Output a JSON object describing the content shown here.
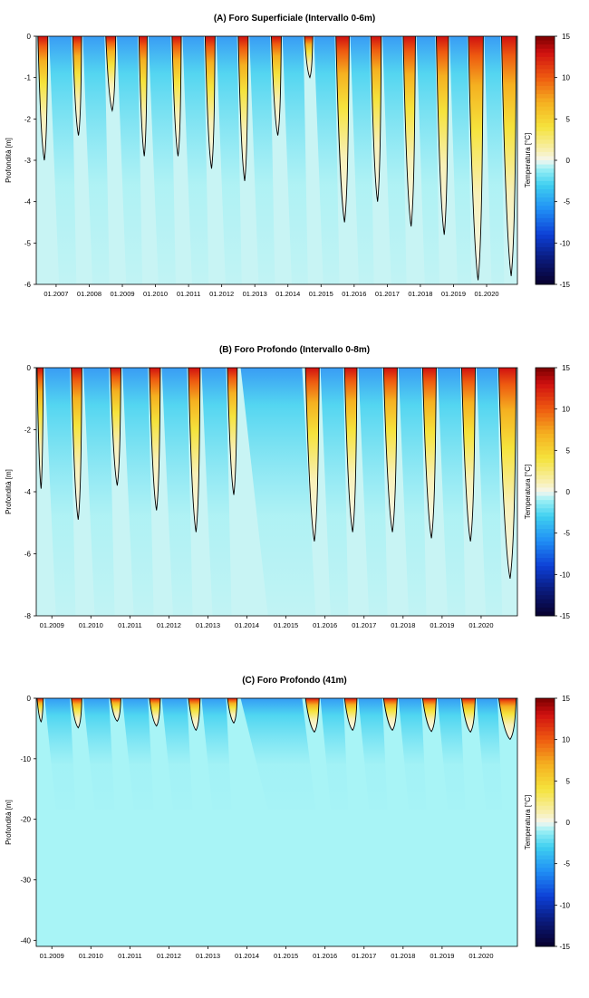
{
  "colorbar": {
    "label": "Temperatura [°C]",
    "ticks": [
      15,
      10,
      5,
      0,
      -5,
      -10,
      -15
    ],
    "range": [
      -15,
      15
    ],
    "colors": {
      "neg15": "#08002e",
      "neg12": "#0a1a7a",
      "neg9": "#0d3fd6",
      "neg6": "#1f8df5",
      "neg3": "#3fd0f0",
      "neg1": "#9ef0f5",
      "zero": "#f5f7f0",
      "pos1": "#f8f0b8",
      "pos4": "#f5e33c",
      "pos7": "#f5b020",
      "pos10": "#ee5a10",
      "pos13": "#d01010",
      "pos15": "#7a0000"
    }
  },
  "chart_data": [
    {
      "type": "heatmap",
      "title": "(A) Foro Superficiale (Intervallo 0-6m)",
      "ylabel": "Profondità [m]",
      "ylim": [
        -6,
        0
      ],
      "yticks": [
        0,
        -1,
        -2,
        -3,
        -4,
        -5,
        -6
      ],
      "xlim": [
        2006.4,
        2020.93
      ],
      "xticks": [
        2007,
        2008,
        2009,
        2010,
        2011,
        2012,
        2013,
        2014,
        2015,
        2016,
        2017,
        2018,
        2019,
        2020
      ],
      "xtick_labels": [
        "01.2007",
        "01.2008",
        "01.2009",
        "01.2010",
        "01.2011",
        "01.2012",
        "01.2013",
        "01.2014",
        "01.2015",
        "01.2016",
        "01.2017",
        "01.2018",
        "01.2019",
        "01.2020"
      ],
      "summers": [
        {
          "start": 2006.45,
          "end": 2006.75,
          "max_thaw_depth": 3.0
        },
        {
          "start": 2007.5,
          "end": 2007.77,
          "max_thaw_depth": 2.4
        },
        {
          "start": 2008.5,
          "end": 2008.8,
          "max_thaw_depth": 1.8
        },
        {
          "start": 2009.5,
          "end": 2009.75,
          "max_thaw_depth": 2.9
        },
        {
          "start": 2010.5,
          "end": 2010.78,
          "max_thaw_depth": 2.9
        },
        {
          "start": 2011.5,
          "end": 2011.8,
          "max_thaw_depth": 3.2
        },
        {
          "start": 2012.5,
          "end": 2012.8,
          "max_thaw_depth": 3.5
        },
        {
          "start": 2013.5,
          "end": 2013.8,
          "max_thaw_depth": 2.4
        },
        {
          "start": 2014.5,
          "end": 2014.75,
          "max_thaw_depth": 1.0
        },
        {
          "start": 2015.45,
          "end": 2015.85,
          "max_thaw_depth": 4.5
        },
        {
          "start": 2016.5,
          "end": 2016.82,
          "max_thaw_depth": 4.0
        },
        {
          "start": 2017.48,
          "end": 2017.85,
          "max_thaw_depth": 4.6
        },
        {
          "start": 2018.48,
          "end": 2018.85,
          "max_thaw_depth": 4.8
        },
        {
          "start": 2019.45,
          "end": 2019.9,
          "max_thaw_depth": 5.9
        },
        {
          "start": 2020.45,
          "end": 2020.9,
          "max_thaw_depth": 5.8
        }
      ]
    },
    {
      "type": "heatmap",
      "title": "(B) Foro Profondo (Intervallo 0-8m)",
      "ylabel": "Profondità [m]",
      "ylim": [
        -8,
        0
      ],
      "yticks": [
        0,
        -2,
        -4,
        -6,
        -8
      ],
      "xlim": [
        2008.6,
        2020.93
      ],
      "xticks": [
        2009,
        2010,
        2011,
        2012,
        2013,
        2014,
        2015,
        2016,
        2017,
        2018,
        2019,
        2020
      ],
      "xtick_labels": [
        "01.2009",
        "01.2010",
        "01.2011",
        "01.2012",
        "01.2013",
        "01.2014",
        "01.2015",
        "01.2016",
        "01.2017",
        "01.2018",
        "01.2019",
        "01.2020"
      ],
      "summers": [
        {
          "start": 2008.62,
          "end": 2008.78,
          "max_thaw_depth": 3.9
        },
        {
          "start": 2009.5,
          "end": 2009.77,
          "max_thaw_depth": 4.9
        },
        {
          "start": 2010.5,
          "end": 2010.77,
          "max_thaw_depth": 3.8
        },
        {
          "start": 2011.5,
          "end": 2011.78,
          "max_thaw_depth": 4.6
        },
        {
          "start": 2012.5,
          "end": 2012.8,
          "max_thaw_depth": 5.3
        },
        {
          "start": 2013.5,
          "end": 2013.75,
          "max_thaw_depth": 4.1
        },
        {
          "start": 2015.5,
          "end": 2015.85,
          "max_thaw_depth": 5.6
        },
        {
          "start": 2016.5,
          "end": 2016.82,
          "max_thaw_depth": 5.3
        },
        {
          "start": 2017.5,
          "end": 2017.85,
          "max_thaw_depth": 5.3
        },
        {
          "start": 2018.5,
          "end": 2018.85,
          "max_thaw_depth": 5.5
        },
        {
          "start": 2019.5,
          "end": 2019.85,
          "max_thaw_depth": 5.6
        },
        {
          "start": 2020.45,
          "end": 2020.9,
          "max_thaw_depth": 6.8
        }
      ]
    },
    {
      "type": "heatmap",
      "title": "(C) Foro Profondo (41m)",
      "ylabel": "Profondità [m]",
      "ylim": [
        -41,
        0
      ],
      "yticks": [
        0,
        -10,
        -20,
        -30,
        -40
      ],
      "xlim": [
        2008.6,
        2020.93
      ],
      "xticks": [
        2009,
        2010,
        2011,
        2012,
        2013,
        2014,
        2015,
        2016,
        2017,
        2018,
        2019,
        2020
      ],
      "xtick_labels": [
        "01.2009",
        "01.2010",
        "01.2011",
        "01.2012",
        "01.2013",
        "01.2014",
        "01.2015",
        "01.2016",
        "01.2017",
        "01.2018",
        "01.2019",
        "01.2020"
      ],
      "summers": [
        {
          "start": 2008.62,
          "end": 2008.78,
          "max_thaw_depth": 3.9
        },
        {
          "start": 2009.5,
          "end": 2009.77,
          "max_thaw_depth": 4.9
        },
        {
          "start": 2010.5,
          "end": 2010.77,
          "max_thaw_depth": 3.8
        },
        {
          "start": 2011.5,
          "end": 2011.78,
          "max_thaw_depth": 4.6
        },
        {
          "start": 2012.5,
          "end": 2012.8,
          "max_thaw_depth": 5.3
        },
        {
          "start": 2013.5,
          "end": 2013.75,
          "max_thaw_depth": 4.1
        },
        {
          "start": 2015.5,
          "end": 2015.85,
          "max_thaw_depth": 5.6
        },
        {
          "start": 2016.5,
          "end": 2016.82,
          "max_thaw_depth": 5.3
        },
        {
          "start": 2017.5,
          "end": 2017.85,
          "max_thaw_depth": 5.3
        },
        {
          "start": 2018.5,
          "end": 2018.85,
          "max_thaw_depth": 5.5
        },
        {
          "start": 2019.5,
          "end": 2019.85,
          "max_thaw_depth": 5.6
        },
        {
          "start": 2020.45,
          "end": 2020.9,
          "max_thaw_depth": 6.8
        }
      ]
    }
  ]
}
